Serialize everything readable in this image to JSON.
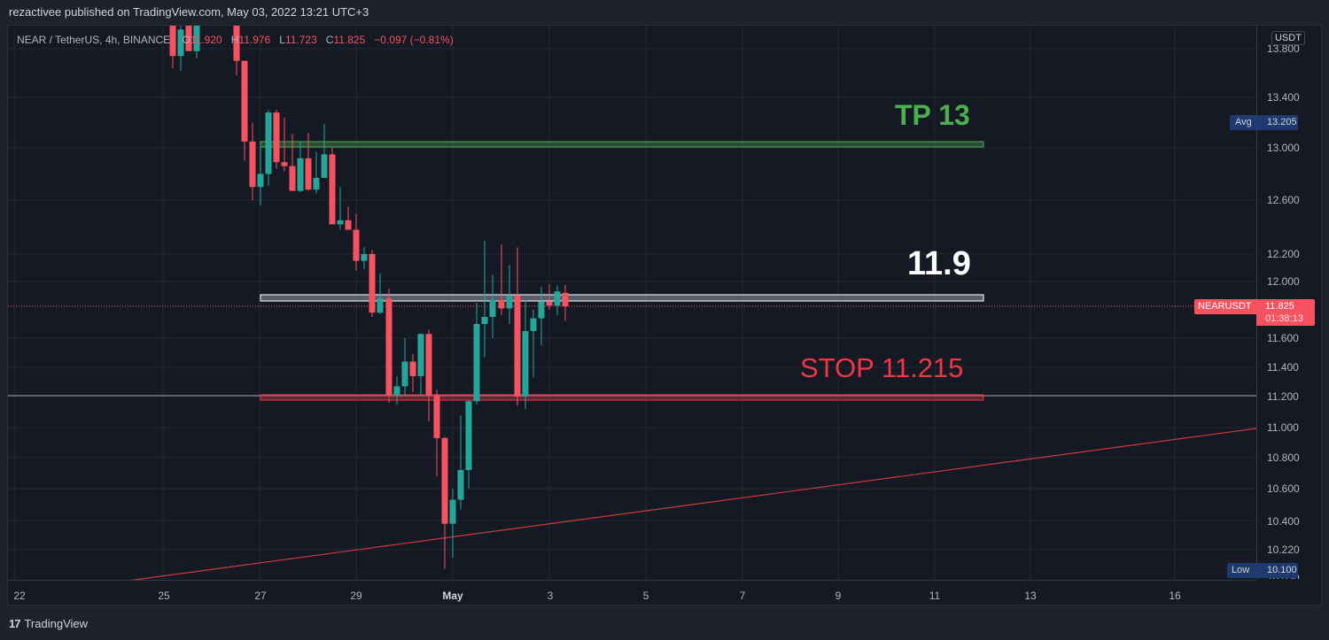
{
  "header": {
    "published_text": "rezactivee published on TradingView.com, May 03, 2022 13:21 UTC+3"
  },
  "legend": {
    "symbol": "NEAR / TetherUS, 4h, BINANCE",
    "open_label": "O",
    "open_value": "11.920",
    "high_label": "H",
    "high_value": "11.976",
    "low_label": "L",
    "low_value": "11.723",
    "close_label": "C",
    "close_value": "11.825",
    "change": "−0.097 (−0.81%)"
  },
  "price_axis": {
    "currency": "USDT",
    "ticks": [
      "13.800",
      "13.400",
      "13.000",
      "12.600",
      "12.200",
      "12.000",
      "11.600",
      "11.400",
      "11.200",
      "11.000",
      "10.800",
      "10.600",
      "10.400",
      "10.220",
      "10.030"
    ],
    "avg_label": "Avg",
    "avg_value": "13.205",
    "low_label": "Low",
    "low_value": "10.100",
    "symbol_tag": "NEARUSDT",
    "last_price": "11.825",
    "countdown": "01:38:13"
  },
  "time_axis": {
    "ticks": [
      "22",
      "25",
      "27",
      "29",
      "May",
      "3",
      "5",
      "7",
      "9",
      "11",
      "13",
      "16"
    ]
  },
  "annotations": {
    "tp_label": "TP  13",
    "entry_label": "11.9",
    "stop_label": "STOP  11.215"
  },
  "footer": {
    "logo_mark": "17",
    "brand": "TradingView"
  },
  "colors": {
    "up": "#26a69a",
    "down": "#f7525f",
    "tp": "#4caf50",
    "stop": "#f23645",
    "entry": "#ffffff",
    "axis_tag": "#1e3a6e"
  },
  "chart_data": {
    "type": "candlestick",
    "title": "NEAR / TetherUS, 4h, BINANCE",
    "xlabel": "",
    "ylabel": "USDT",
    "ylim": [
      10.03,
      13.9
    ],
    "x_ticks": [
      "22",
      "25",
      "27",
      "29",
      "May",
      "3",
      "5",
      "7",
      "9",
      "11",
      "13",
      "16"
    ],
    "y_ticks": [
      13.8,
      13.4,
      13.0,
      12.6,
      12.2,
      12.0,
      11.6,
      11.4,
      11.2,
      11.0,
      10.8,
      10.6,
      10.4,
      10.22,
      10.03
    ],
    "grid": true,
    "last": {
      "open": 11.92,
      "high": 11.976,
      "low": 11.723,
      "close": 11.825,
      "change": -0.097,
      "change_pct": -0.81
    },
    "levels": [
      {
        "name": "TP",
        "value": 13.0
      },
      {
        "name": "Entry",
        "value": 11.9
      },
      {
        "name": "Stop",
        "value": 11.215
      },
      {
        "name": "Avg",
        "value": 13.205
      },
      {
        "name": "Low",
        "value": 10.1
      }
    ],
    "trendline": {
      "from": {
        "x": "Apr 23",
        "y": 9.95
      },
      "to": {
        "x": "May 17",
        "y": 10.99
      }
    },
    "candles": [
      {
        "x": 195,
        "o": 13.9,
        "h": 13.95,
        "l": 13.64,
        "c": 13.74
      },
      {
        "x": 204,
        "o": 13.74,
        "h": 13.95,
        "l": 13.62,
        "c": 13.88
      },
      {
        "x": 213,
        "o": 13.9,
        "h": 13.95,
        "l": 13.82,
        "c": 13.78
      },
      {
        "x": 222,
        "o": 13.78,
        "h": 13.95,
        "l": 13.72,
        "c": 13.92
      },
      {
        "x": 267,
        "o": 13.92,
        "h": 13.95,
        "l": 13.58,
        "c": 13.7
      },
      {
        "x": 276,
        "o": 13.7,
        "h": 13.46,
        "l": 12.9,
        "c": 13.05
      },
      {
        "x": 285,
        "o": 13.05,
        "h": 13.2,
        "l": 12.6,
        "c": 12.7
      },
      {
        "x": 294,
        "o": 12.7,
        "h": 13.03,
        "l": 12.56,
        "c": 12.8
      },
      {
        "x": 303,
        "o": 12.8,
        "h": 13.3,
        "l": 12.71,
        "c": 13.28
      },
      {
        "x": 312,
        "o": 13.28,
        "h": 13.3,
        "l": 12.84,
        "c": 12.89
      },
      {
        "x": 321,
        "o": 12.89,
        "h": 13.24,
        "l": 12.82,
        "c": 12.86
      },
      {
        "x": 330,
        "o": 12.86,
        "h": 13.11,
        "l": 12.69,
        "c": 12.67
      },
      {
        "x": 339,
        "o": 12.67,
        "h": 13.05,
        "l": 12.66,
        "c": 12.92
      },
      {
        "x": 348,
        "o": 12.92,
        "h": 13.12,
        "l": 12.67,
        "c": 12.68
      },
      {
        "x": 357,
        "o": 12.68,
        "h": 12.97,
        "l": 12.65,
        "c": 12.77
      },
      {
        "x": 366,
        "o": 12.77,
        "h": 13.19,
        "l": 12.88,
        "c": 12.95
      },
      {
        "x": 375,
        "o": 12.95,
        "h": 13.0,
        "l": 12.52,
        "c": 12.42
      },
      {
        "x": 384,
        "o": 12.42,
        "h": 12.7,
        "l": 12.38,
        "c": 12.45
      },
      {
        "x": 393,
        "o": 12.45,
        "h": 12.55,
        "l": 12.38,
        "c": 12.38
      },
      {
        "x": 402,
        "o": 12.38,
        "h": 12.5,
        "l": 12.08,
        "c": 12.15
      },
      {
        "x": 411,
        "o": 12.15,
        "h": 12.25,
        "l": 12.09,
        "c": 12.2
      },
      {
        "x": 420,
        "o": 12.2,
        "h": 12.23,
        "l": 11.75,
        "c": 11.78
      },
      {
        "x": 429,
        "o": 11.78,
        "h": 12.06,
        "l": 11.77,
        "c": 11.88
      },
      {
        "x": 439,
        "o": 11.88,
        "h": 11.95,
        "l": 11.16,
        "c": 11.21
      },
      {
        "x": 448,
        "o": 11.21,
        "h": 11.34,
        "l": 11.15,
        "c": 11.27
      },
      {
        "x": 457,
        "o": 11.27,
        "h": 11.6,
        "l": 11.2,
        "c": 11.44
      },
      {
        "x": 466,
        "o": 11.44,
        "h": 11.49,
        "l": 11.23,
        "c": 11.34
      },
      {
        "x": 475,
        "o": 11.34,
        "h": 11.6,
        "l": 11.2,
        "c": 11.63
      },
      {
        "x": 484,
        "o": 11.63,
        "h": 11.66,
        "l": 11.04,
        "c": 11.21
      },
      {
        "x": 493,
        "o": 11.21,
        "h": 11.25,
        "l": 10.68,
        "c": 10.93
      },
      {
        "x": 502,
        "o": 10.93,
        "h": 10.94,
        "l": 10.1,
        "c": 10.38
      },
      {
        "x": 511,
        "o": 10.38,
        "h": 10.6,
        "l": 10.17,
        "c": 10.53
      },
      {
        "x": 520,
        "o": 10.53,
        "h": 11.08,
        "l": 10.47,
        "c": 10.72
      },
      {
        "x": 529,
        "o": 10.72,
        "h": 11.18,
        "l": 10.6,
        "c": 11.17
      },
      {
        "x": 538,
        "o": 11.17,
        "h": 11.85,
        "l": 11.15,
        "c": 11.7
      },
      {
        "x": 547,
        "o": 11.7,
        "h": 12.3,
        "l": 11.47,
        "c": 11.75
      },
      {
        "x": 556,
        "o": 11.75,
        "h": 12.05,
        "l": 11.6,
        "c": 11.87
      },
      {
        "x": 566,
        "o": 11.87,
        "h": 12.27,
        "l": 11.76,
        "c": 11.81
      },
      {
        "x": 575,
        "o": 11.81,
        "h": 12.12,
        "l": 11.7,
        "c": 11.9
      },
      {
        "x": 584,
        "o": 11.9,
        "h": 12.25,
        "l": 11.14,
        "c": 11.2
      },
      {
        "x": 593,
        "o": 11.2,
        "h": 11.87,
        "l": 11.12,
        "c": 11.65
      },
      {
        "x": 602,
        "o": 11.65,
        "h": 11.8,
        "l": 11.33,
        "c": 11.74
      },
      {
        "x": 611,
        "o": 11.74,
        "h": 11.96,
        "l": 11.55,
        "c": 11.86
      },
      {
        "x": 620,
        "o": 11.86,
        "h": 11.98,
        "l": 11.8,
        "c": 11.83
      },
      {
        "x": 629,
        "o": 11.83,
        "h": 11.97,
        "l": 11.76,
        "c": 11.93
      },
      {
        "x": 638,
        "o": 11.92,
        "h": 11.976,
        "l": 11.723,
        "c": 11.825
      }
    ]
  }
}
